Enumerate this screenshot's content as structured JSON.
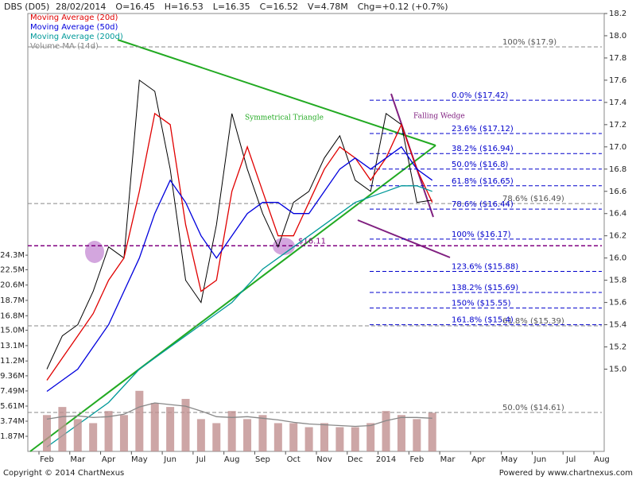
{
  "chart_data": {
    "type": "line",
    "title": "DBS (D05)",
    "header": [
      "28/02/2014",
      "O=16.45",
      "H=16.53",
      "L=16.35",
      "C=16.52",
      "V=4.78M",
      "Chg=+0.12 (+0.7%)"
    ],
    "categories": [
      "Feb",
      null,
      "Mar",
      null,
      "Apr",
      null,
      "May",
      null,
      "Jun",
      null,
      "Jul",
      null,
      "Aug",
      null,
      "Sep",
      null,
      "Oct",
      null,
      "Nov",
      null,
      "Dec",
      null,
      "2014",
      null,
      "Feb",
      null,
      "Mar",
      null,
      "Apr",
      null,
      "May",
      null,
      "Jun",
      null,
      "Jul",
      null,
      "Aug",
      null
    ],
    "series": [
      {
        "color": "#000000",
        "values": [
          15.0,
          15.3,
          15.4,
          15.7,
          16.1,
          16.0,
          17.6,
          17.5,
          16.8,
          15.8,
          15.6,
          16.3,
          17.3,
          16.8,
          16.4,
          16.1,
          16.5,
          16.6,
          16.9,
          17.1,
          16.7,
          16.6,
          17.3,
          17.2,
          16.5,
          16.52,
          null,
          null,
          null,
          null,
          null,
          null,
          null,
          null,
          null,
          null,
          null,
          null
        ]
      },
      {
        "name": "Moving Average (20d)",
        "color": "#e00000",
        "values": [
          14.9,
          15.1,
          15.3,
          15.5,
          15.8,
          16.0,
          16.6,
          17.3,
          17.2,
          16.3,
          15.7,
          15.8,
          16.6,
          17.0,
          16.6,
          16.2,
          16.2,
          16.5,
          16.8,
          17.0,
          16.9,
          16.7,
          16.9,
          17.2,
          16.8,
          16.5,
          null,
          null,
          null,
          null,
          null,
          null,
          null,
          null,
          null,
          null,
          null,
          null
        ]
      },
      {
        "name": "Moving Average (50d)",
        "color": "#0000dd",
        "values": [
          14.8,
          14.9,
          15.0,
          15.2,
          15.4,
          15.7,
          16.0,
          16.4,
          16.7,
          16.5,
          16.2,
          16.0,
          16.2,
          16.4,
          16.5,
          16.5,
          16.4,
          16.4,
          16.6,
          16.8,
          16.9,
          16.8,
          16.9,
          17.0,
          16.8,
          16.7,
          null,
          null,
          null,
          null,
          null,
          null,
          null,
          null,
          null,
          null,
          null,
          null
        ]
      },
      {
        "name": "Moving Average (200d)",
        "color": "#009999",
        "values": [
          14.3,
          14.4,
          14.5,
          14.6,
          14.7,
          14.85,
          15.0,
          15.1,
          15.2,
          15.3,
          15.4,
          15.5,
          15.6,
          15.75,
          15.9,
          16.0,
          16.1,
          16.2,
          16.3,
          16.4,
          16.5,
          16.55,
          16.6,
          16.65,
          16.65,
          16.6,
          null,
          null,
          null,
          null,
          null,
          null,
          null,
          null,
          null,
          null,
          null,
          null
        ]
      },
      {
        "type": "bar",
        "axis": "y2",
        "color": "#c09090",
        "values": [
          4500000,
          5500000,
          4000000,
          3500000,
          5000000,
          4500000,
          7500000,
          6000000,
          5500000,
          6500000,
          4000000,
          3500000,
          5000000,
          4000000,
          4500000,
          3500000,
          3500000,
          3000000,
          3500000,
          3000000,
          3000000,
          3500000,
          5000000,
          4500000,
          4000000,
          4780000,
          null,
          null,
          null,
          null,
          null,
          null,
          null,
          null,
          null,
          null,
          null,
          null
        ]
      },
      {
        "name": "Volume MA (14d)",
        "axis": "y2",
        "color": "#888888",
        "values": [
          4000000,
          4300000,
          4400000,
          4200000,
          4300000,
          4600000,
          5500000,
          6000000,
          5800000,
          5600000,
          5000000,
          4300000,
          4200000,
          4300000,
          4100000,
          3900000,
          3600000,
          3400000,
          3300000,
          3200000,
          3100000,
          3200000,
          3800000,
          4200000,
          4200000,
          4100000,
          null,
          null,
          null,
          null,
          null,
          null,
          null,
          null,
          null,
          null,
          null,
          null
        ]
      }
    ],
    "ylim": [
      14.26,
      18.2
    ],
    "yticks": [
      {
        "value": 15,
        "label": "15.0"
      },
      15.2,
      15.4,
      15.6,
      15.8,
      {
        "value": 16,
        "label": "16.0"
      },
      16.2,
      16.4,
      16.6,
      16.8,
      {
        "value": 17,
        "label": "17.0"
      },
      17.2,
      17.4,
      17.6,
      17.8,
      {
        "value": 18,
        "label": "18.0"
      },
      18.2
    ],
    "y2lim": [
      0,
      54230000
    ],
    "y2ticks": [
      {
        "value": 1870000,
        "label": "1.87M"
      },
      {
        "value": 3740000,
        "label": "3.74M"
      },
      {
        "value": 5610000,
        "label": "5.61M"
      },
      {
        "value": 7490000,
        "label": "7.49M"
      },
      {
        "value": 9360000,
        "label": "9.36M"
      },
      {
        "value": 11200000,
        "label": "11.2M"
      },
      {
        "value": 13100000,
        "label": "13.1M"
      },
      {
        "value": 15000000,
        "label": "15.0M"
      },
      {
        "value": 16800000,
        "label": "16.8M"
      },
      {
        "value": 18700000,
        "label": "18.7M"
      },
      {
        "value": 20600000,
        "label": "20.6M"
      },
      {
        "value": 22500000,
        "label": "22.5M"
      },
      {
        "value": 24300000,
        "label": "24.3M"
      }
    ],
    "levels": [
      {
        "value": 17.9,
        "label": "100%   ($17.9)",
        "color": "#888888"
      },
      {
        "value": 17.42,
        "label": "0.0%   ($17.42)",
        "color": "#0000cc"
      },
      {
        "value": 17.12,
        "label": "23.6%   ($17.12)",
        "color": "#0000cc"
      },
      {
        "value": 16.94,
        "label": "38.2%   ($16.94)",
        "color": "#0000cc"
      },
      {
        "value": 16.8,
        "label": "50.0%   ($16.8)",
        "color": "#0000cc"
      },
      {
        "value": 16.65,
        "label": "61.8%   ($16.65)",
        "color": "#0000cc"
      },
      {
        "value": 16.49,
        "label": "78.6%   ($16.49)",
        "color": "#888888"
      },
      {
        "value": 16.44,
        "label": "78.6%   ($16.44)",
        "color": "#0000cc"
      },
      {
        "value": 16.17,
        "label": "100%   ($16.17)",
        "color": "#0000cc"
      },
      {
        "value": 16.11,
        "label": "$16.11",
        "color": "#800080"
      },
      {
        "value": 15.88,
        "label": "123.6%   ($15.88)",
        "color": "#0000cc"
      },
      {
        "value": 15.69,
        "label": "138.2%   ($15.69)",
        "color": "#0000cc"
      },
      {
        "value": 15.55,
        "label": "150%   ($15.55)",
        "color": "#0000cc"
      },
      {
        "value": 15.39,
        "label": "61.8%   ($15.39)",
        "color": "#888888"
      },
      {
        "value": 15.4,
        "label": "161.8%   ($15.4)",
        "color": "#0000cc"
      },
      {
        "value": 14.61,
        "label": "50.0%   ($14.61)",
        "color": "#888888"
      }
    ],
    "annotations": [
      "Symmetrical Triangle",
      "Falling Wedge"
    ],
    "footer": [
      "Copyright © 2014 ChartNexus",
      "Powered by www.chartnexus.com"
    ]
  }
}
